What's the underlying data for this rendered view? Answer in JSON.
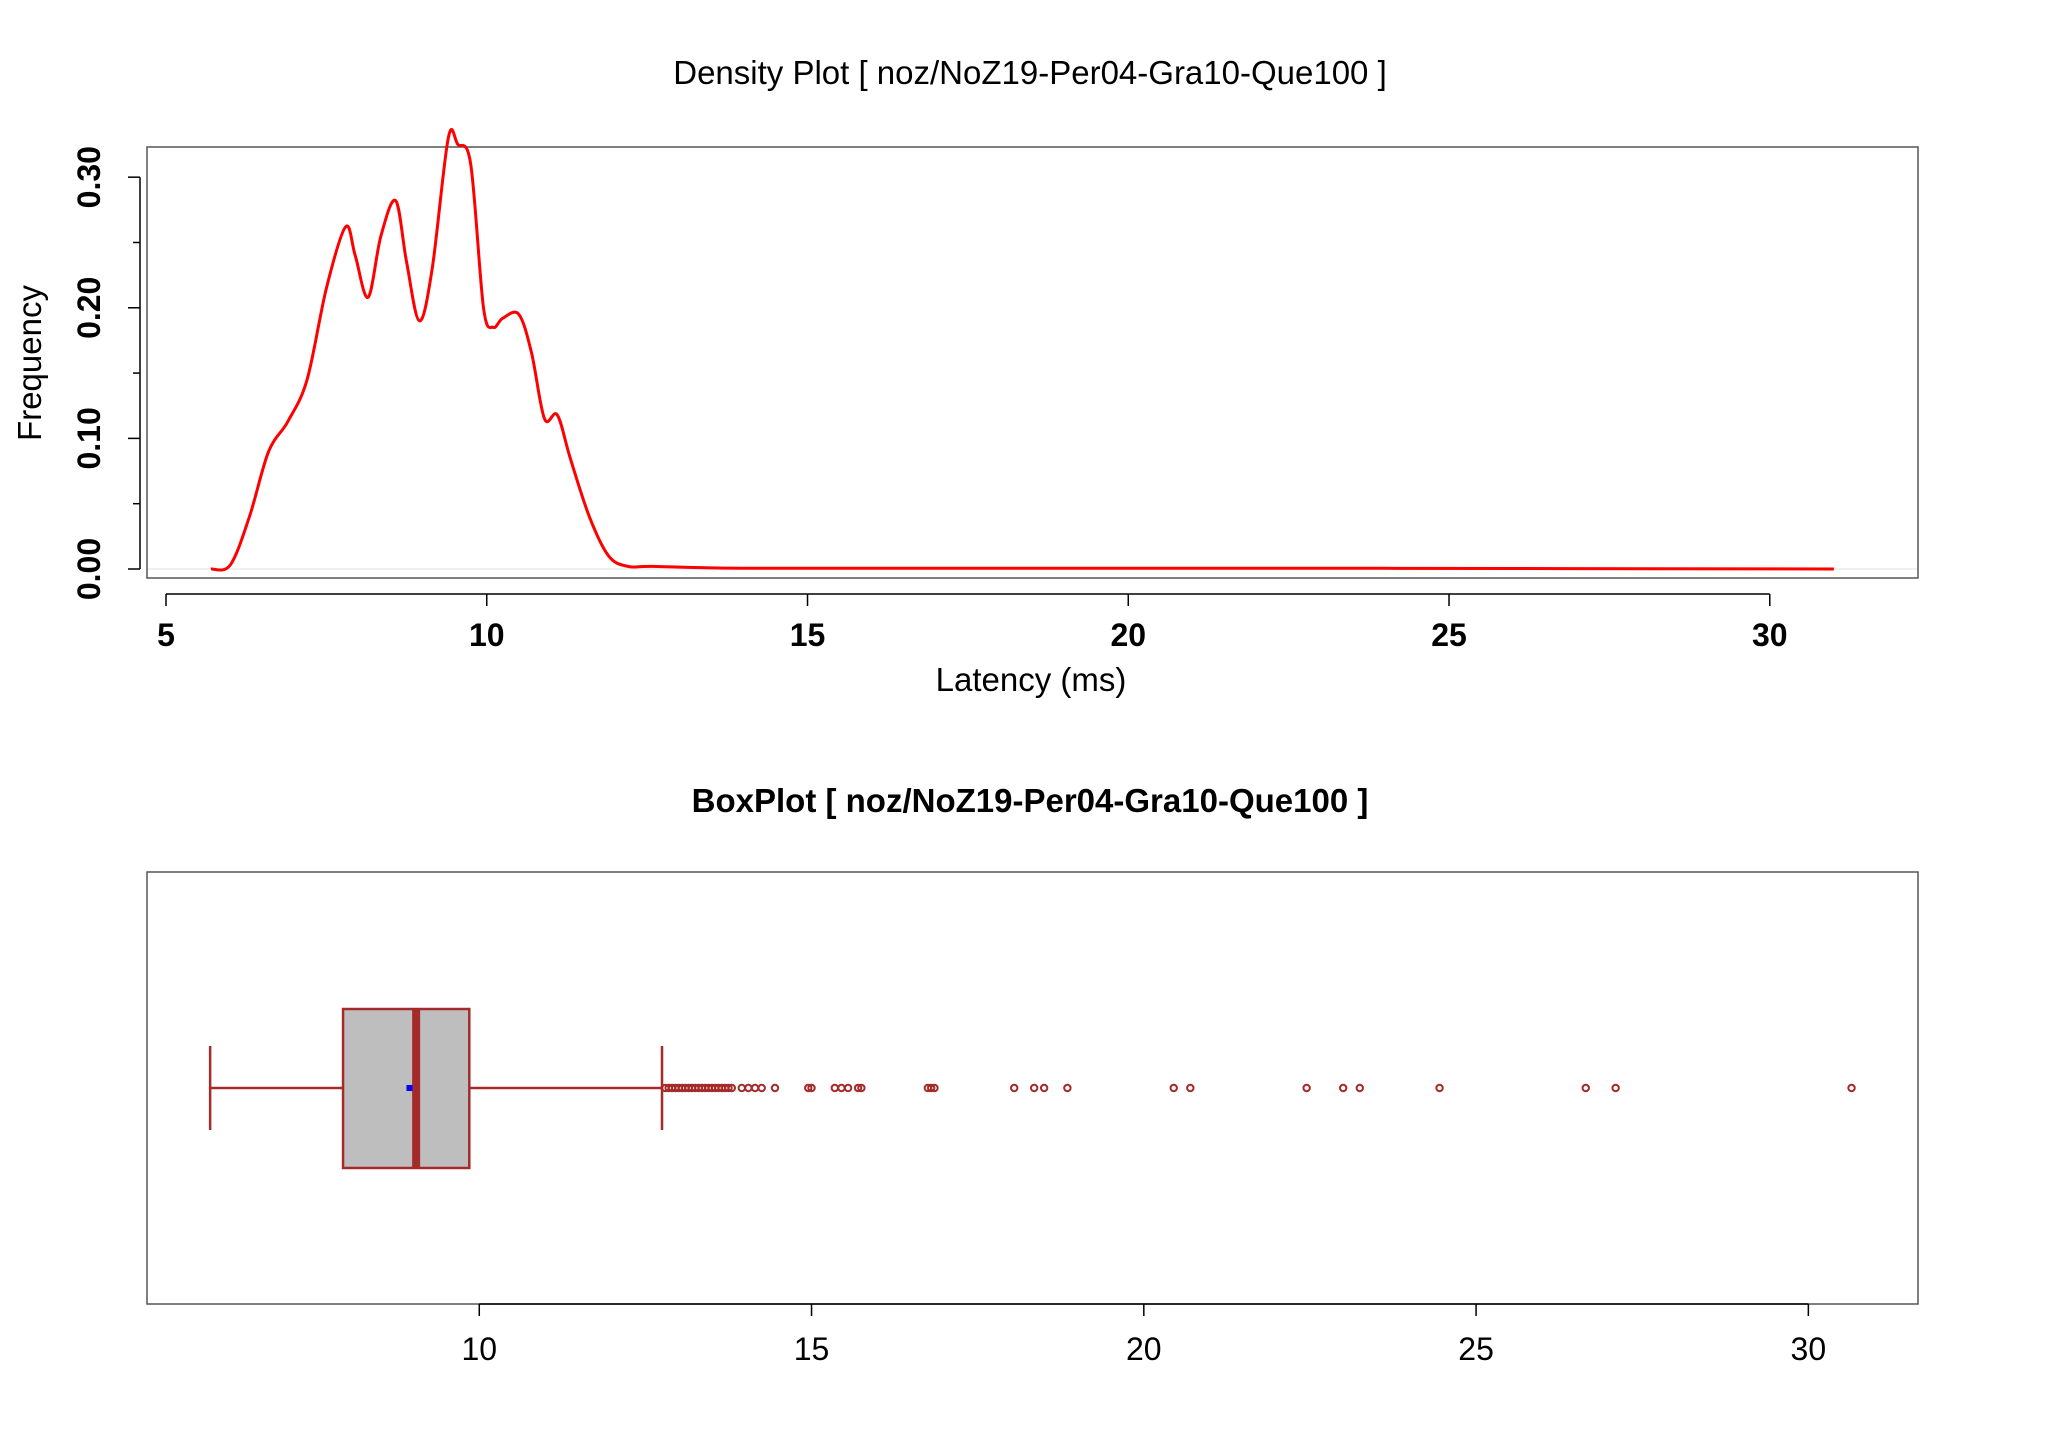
{
  "chart_data": [
    {
      "type": "line",
      "title": "Density Plot [ noz/NoZ19-Per04-Gra10-Que100 ]",
      "xlabel": "Latency (ms)",
      "ylabel": "Frequency",
      "xlim": [
        5,
        31.5
      ],
      "ylim": [
        0,
        0.33
      ],
      "xticks": [
        5,
        10,
        15,
        20,
        25,
        30
      ],
      "xtick_labels": [
        "5",
        "10",
        "15",
        "20",
        "25",
        "30"
      ],
      "yticks": [
        0,
        0.1,
        0.2,
        0.3
      ],
      "ytick_labels": [
        "0.00",
        "0.10",
        "0.20",
        "0.30"
      ],
      "y_minor_ticks": [
        0.05,
        0.15,
        0.25
      ],
      "grid": false,
      "series": [
        {
          "color": "#ff0000",
          "x": [
            5.7,
            6.0,
            6.3,
            6.6,
            6.9,
            7.2,
            7.5,
            7.8,
            7.95,
            8.15,
            8.35,
            8.58,
            8.75,
            8.95,
            9.15,
            9.4,
            9.55,
            9.75,
            9.95,
            10.1,
            10.25,
            10.5,
            10.7,
            10.9,
            11.1,
            11.3,
            11.6,
            11.9,
            12.2,
            12.6,
            14.0,
            18.0,
            24.0,
            31.0
          ],
          "y": [
            0.0,
            0.003,
            0.04,
            0.09,
            0.113,
            0.145,
            0.215,
            0.262,
            0.24,
            0.208,
            0.255,
            0.282,
            0.235,
            0.19,
            0.23,
            0.33,
            0.325,
            0.31,
            0.2,
            0.185,
            0.192,
            0.195,
            0.165,
            0.115,
            0.118,
            0.085,
            0.04,
            0.01,
            0.002,
            0.002,
            0.0005,
            0.0005,
            0.0005,
            0.0
          ]
        }
      ]
    },
    {
      "type": "box",
      "title": "BoxPlot [ noz/NoZ19-Per04-Gra10-Que100 ]",
      "xlim": [
        5.0,
        31.65
      ],
      "xticks": [
        10,
        15,
        20,
        25,
        30
      ],
      "xtick_labels": [
        "10",
        "15",
        "20",
        "25",
        "30"
      ],
      "whisker_low": 5.95,
      "q1": 7.95,
      "median": 9.05,
      "mean": 8.95,
      "q3": 9.85,
      "whisker_high": 12.75,
      "box_fill": "#bebebe",
      "line_color": "#a52a2a",
      "mean_color": "#0000ff",
      "outliers": [
        12.8,
        12.85,
        12.9,
        12.95,
        13.0,
        13.05,
        13.1,
        13.15,
        13.2,
        13.25,
        13.3,
        13.35,
        13.4,
        13.45,
        13.5,
        13.55,
        13.6,
        13.65,
        13.7,
        13.75,
        13.8,
        13.95,
        14.05,
        14.15,
        14.25,
        14.45,
        14.95,
        15.0,
        15.35,
        15.45,
        15.55,
        15.7,
        15.75,
        16.75,
        16.8,
        16.85,
        18.05,
        18.35,
        18.5,
        18.85,
        20.45,
        20.7,
        22.45,
        23.0,
        23.25,
        24.45,
        26.65,
        27.1,
        30.65
      ]
    }
  ]
}
